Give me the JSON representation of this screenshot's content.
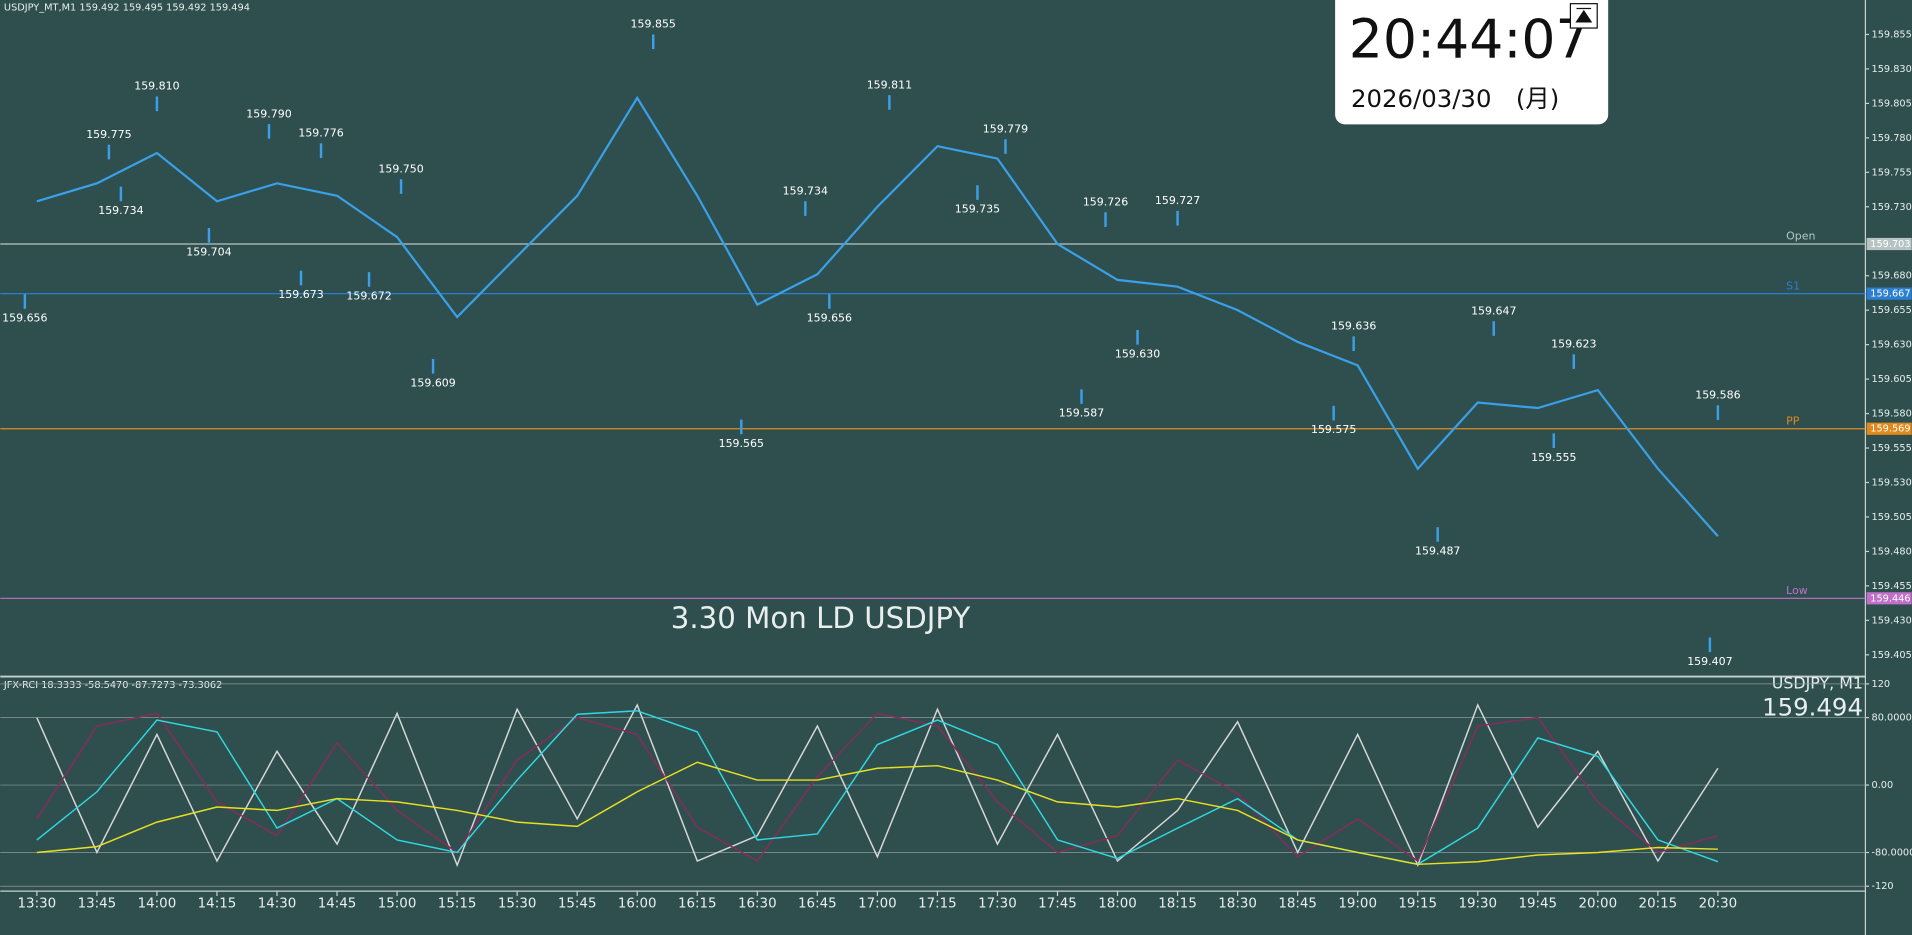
{
  "header": "USDJPY_MT,M1  159.492 159.495 159.492 159.494",
  "clock": {
    "time": "20:44:07",
    "date": "2026/03/30　(月)"
  },
  "symbol_label": "USDJPY, M1",
  "last_price": 159.494,
  "chart_data": [
    {
      "type": "line",
      "annotation": "3.30 Mon LD USDJPY",
      "x": [
        "13:30",
        "13:45",
        "14:00",
        "14:15",
        "14:30",
        "14:45",
        "15:00",
        "15:15",
        "15:30",
        "15:45",
        "16:00",
        "16:15",
        "16:30",
        "16:45",
        "17:00",
        "17:15",
        "17:30",
        "17:45",
        "18:00",
        "18:15",
        "18:30",
        "18:45",
        "19:00",
        "19:15",
        "19:30",
        "19:45",
        "20:00",
        "20:15",
        "20:30"
      ],
      "series": [
        {
          "color": "#3aa0e8",
          "values": [
            159.734,
            159.747,
            159.769,
            159.734,
            159.747,
            159.738,
            159.708,
            159.65,
            159.694,
            159.738,
            159.809,
            159.738,
            159.659,
            159.681,
            159.73,
            159.774,
            159.765,
            159.703,
            159.677,
            159.672,
            159.655,
            159.632,
            159.615,
            159.54,
            159.588,
            159.584,
            159.597,
            159.54,
            159.491
          ]
        }
      ],
      "swing_times": [
        "13:27",
        "13:48",
        "13:51",
        "14:00",
        "14:13",
        "14:28",
        "14:36",
        "14:41",
        "14:53",
        "15:01",
        "15:09",
        "16:04",
        "16:26",
        "16:42",
        "16:48",
        "17:03",
        "17:32",
        "17:25",
        "17:57",
        "17:51",
        "18:15",
        "18:05",
        "18:59",
        "18:54",
        "19:34",
        "19:20",
        "19:54",
        "19:49",
        "20:30",
        "20:28"
      ],
      "swing_prices": [
        159.656,
        159.775,
        159.734,
        {
          "value": 159.81,
          "label": "159.810"
        },
        159.704,
        {
          "value": 159.79,
          "label": "159.790"
        },
        159.673,
        159.776,
        159.672,
        {
          "value": 159.75,
          "label": "159.750"
        },
        159.609,
        159.855,
        159.565,
        159.734,
        159.656,
        159.811,
        159.779,
        159.735,
        159.726,
        159.587,
        159.727,
        {
          "value": 159.63,
          "label": "159.630"
        },
        159.636,
        159.575,
        159.647,
        159.487,
        159.623,
        159.555,
        159.586,
        159.407
      ],
      "levels": [
        {
          "name": "Open",
          "value": 159.703,
          "color": "#b8c4c4"
        },
        {
          "name": "S1",
          "value": 159.667,
          "color": "#2a7fd0"
        },
        {
          "name": "PP",
          "value": 159.569,
          "color": "#e08a1e"
        },
        {
          "name": "Low",
          "value": 159.446,
          "color": "#c070c8"
        }
      ],
      "ylim": [
        159.391,
        159.88
      ],
      "yticks": [
        159.855,
        {
          "value": 159.83,
          "label": "159.830"
        },
        159.805,
        {
          "value": 159.78,
          "label": "159.780"
        },
        159.755,
        {
          "value": 159.73,
          "label": "159.730"
        },
        {
          "value": 159.68,
          "label": "159.680"
        },
        159.655,
        {
          "value": 159.63,
          "label": "159.630"
        },
        159.605,
        {
          "value": 159.58,
          "label": "159.580"
        },
        159.555,
        {
          "value": 159.53,
          "label": "159.530"
        },
        159.505,
        {
          "value": 159.48,
          "label": "159.480"
        },
        159.455,
        {
          "value": 159.43,
          "label": "159.430"
        },
        159.405
      ]
    },
    {
      "type": "line",
      "title": "JFX-RCI 18.3333 -58.5470 -87.7273 -73.3062",
      "x": [
        "13:30",
        "13:45",
        "14:00",
        "14:15",
        "14:30",
        "14:45",
        "15:00",
        "15:15",
        "15:30",
        "15:45",
        "16:00",
        "16:15",
        "16:30",
        "16:45",
        "17:00",
        "17:15",
        "17:30",
        "17:45",
        "18:00",
        "18:15",
        "18:30",
        "18:45",
        "19:00",
        "19:15",
        "19:30",
        "19:45",
        "20:00",
        "20:15",
        "20:30"
      ],
      "series": [
        {
          "color": "#d8d8d8",
          "values": [
            80,
            -80,
            60,
            -90,
            40,
            -70,
            85,
            -95,
            90,
            -40,
            95,
            -90,
            -60,
            70,
            -85,
            90,
            -70,
            60,
            -90,
            -30,
            75,
            -80,
            60,
            -95,
            95,
            -50,
            40,
            -90,
            20
          ]
        },
        {
          "color": "#8a2a5a",
          "values": [
            -40,
            70,
            85,
            -20,
            -60,
            50,
            -30,
            -80,
            30,
            80,
            60,
            -50,
            -90,
            10,
            85,
            70,
            -20,
            -80,
            -60,
            30,
            -10,
            -85,
            -40,
            -90,
            70,
            80,
            -20,
            -80,
            -60
          ]
        },
        {
          "color": "#30d8e0",
          "values": [
            -65,
            -8,
            77,
            63,
            -51,
            -16,
            -65,
            -80,
            6,
            84,
            88,
            63,
            -65,
            -58,
            48,
            77,
            48,
            -65,
            -87,
            -51,
            -16,
            -65,
            -80,
            -94,
            -51,
            56,
            34,
            -65,
            -91
          ]
        },
        {
          "color": "#e8e020",
          "values": [
            -80,
            -73,
            -44,
            -26,
            -30,
            -16,
            -20,
            -30,
            -44,
            -49,
            -8,
            27,
            6,
            6,
            20,
            23,
            6,
            -20,
            -26,
            -16,
            -30,
            -65,
            -80,
            -94,
            -91,
            -83,
            -80,
            -74,
            -76
          ]
        }
      ],
      "ylim": [
        -120,
        120
      ],
      "yticks": [
        120,
        {
          "value": 80,
          "label": "80.0000"
        },
        {
          "value": 0,
          "label": "0.00"
        },
        {
          "value": -80,
          "label": "-80.0000"
        },
        -120
      ]
    }
  ]
}
